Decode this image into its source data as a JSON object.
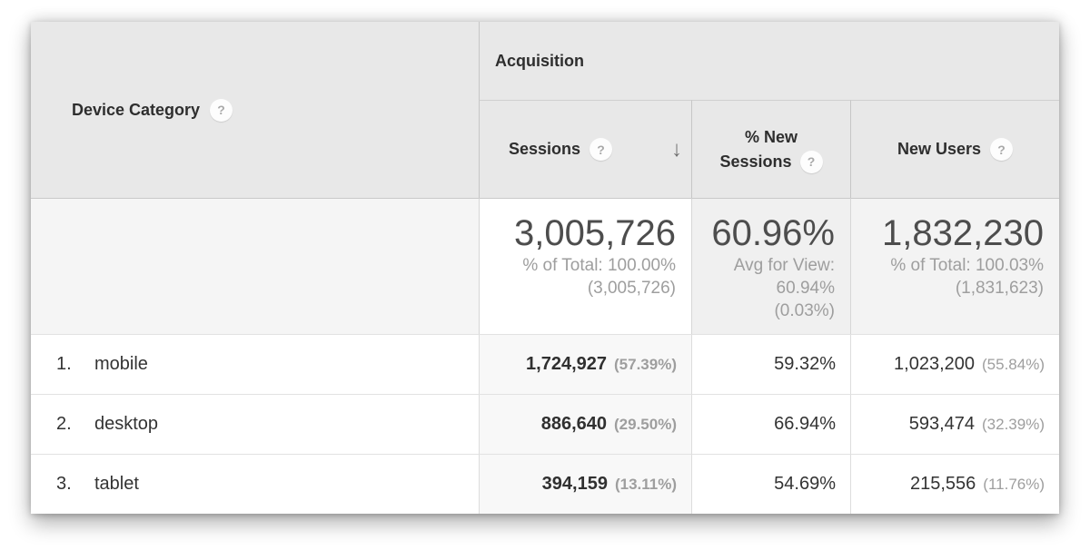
{
  "colors": {
    "header_bg": "#e8e8e8",
    "summary_bg": "#f4f4f4",
    "sorted_column_body_bg": "#f8f8f8",
    "sorted_column_summary_bg": "#ffffff",
    "text_dark": "#333333",
    "text_gray": "#9e9e9e",
    "big_number_text": "#4d4d4d"
  },
  "icons": {
    "help_glyph": "?",
    "sort_descending_glyph": "↓"
  },
  "table": {
    "dimension_header": "Device Category",
    "group_header": "Acquisition",
    "columns": {
      "sessions": "Sessions",
      "new_sessions_line1": "% New",
      "new_sessions_line2": "Sessions",
      "new_users": "New Users"
    },
    "summary": {
      "sessions_value": "3,005,726",
      "sessions_sub1": "% of Total: 100.00%",
      "sessions_sub2": "(3,005,726)",
      "new_sessions_value": "60.96%",
      "new_sessions_sub1": "Avg for View:",
      "new_sessions_sub2": "60.94%",
      "new_sessions_sub3": "(0.03%)",
      "new_users_value": "1,832,230",
      "new_users_sub1": "% of Total: 100.03%",
      "new_users_sub2": "(1,831,623)"
    },
    "rows": [
      {
        "rank": "1.",
        "name": "mobile",
        "sessions": "1,724,927",
        "sessions_pct": "(57.39%)",
        "new_sessions": "59.32%",
        "new_users": "1,023,200",
        "new_users_pct": "(55.84%)"
      },
      {
        "rank": "2.",
        "name": "desktop",
        "sessions": "886,640",
        "sessions_pct": "(29.50%)",
        "new_sessions": "66.94%",
        "new_users": "593,474",
        "new_users_pct": "(32.39%)"
      },
      {
        "rank": "3.",
        "name": "tablet",
        "sessions": "394,159",
        "sessions_pct": "(13.11%)",
        "new_sessions": "54.69%",
        "new_users": "215,556",
        "new_users_pct": "(11.76%)"
      }
    ]
  }
}
